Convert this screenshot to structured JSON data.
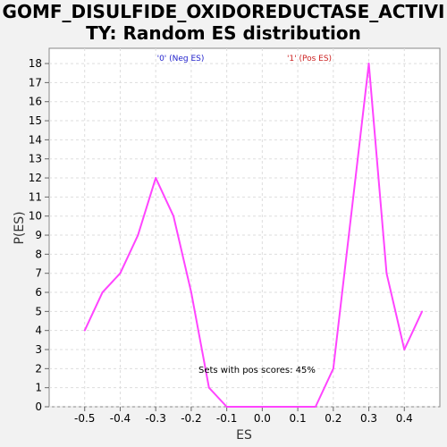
{
  "chart_data": {
    "type": "line",
    "title_line1": "GOMF_DISULFIDE_OXIDOREDUCTASE_ACTIVI",
    "title_line2": "TY: Random ES distribution",
    "xlabel": "ES",
    "ylabel": "P(ES)",
    "xlim": [
      -0.6,
      0.5
    ],
    "ylim": [
      0,
      18.8
    ],
    "x_ticks": [
      -0.5,
      -0.4,
      -0.3,
      -0.2,
      -0.1,
      0.0,
      0.1,
      0.2,
      0.3,
      0.4
    ],
    "x_tick_labels": [
      "-0.5",
      "-0.4",
      "-0.3",
      "-0.2",
      "-0.1",
      "0.0",
      "0.1",
      "0.2",
      "0.3",
      "0.4"
    ],
    "y_ticks": [
      0,
      1,
      2,
      3,
      4,
      5,
      6,
      7,
      8,
      9,
      10,
      11,
      12,
      13,
      14,
      15,
      16,
      17,
      18
    ],
    "grid": true,
    "series": [
      {
        "color": "#ff44ff",
        "x": [
          -0.5,
          -0.45,
          -0.4,
          -0.35,
          -0.3,
          -0.25,
          -0.2,
          -0.15,
          -0.1,
          -0.05,
          0.0,
          0.05,
          0.1,
          0.15,
          0.2,
          0.25,
          0.3,
          0.35,
          0.4,
          0.45
        ],
        "y": [
          4,
          6,
          7,
          9,
          12,
          10,
          6,
          1,
          0,
          0,
          0,
          0,
          0,
          0,
          2,
          10,
          18,
          7,
          3,
          5
        ]
      }
    ],
    "legend": [
      {
        "label": "'0' (Neg ES)",
        "color": "#2222cc"
      },
      {
        "label": "'1' (Pos ES)",
        "color": "#cc2222"
      }
    ],
    "annotation": "Sets with pos scores: 45%"
  }
}
